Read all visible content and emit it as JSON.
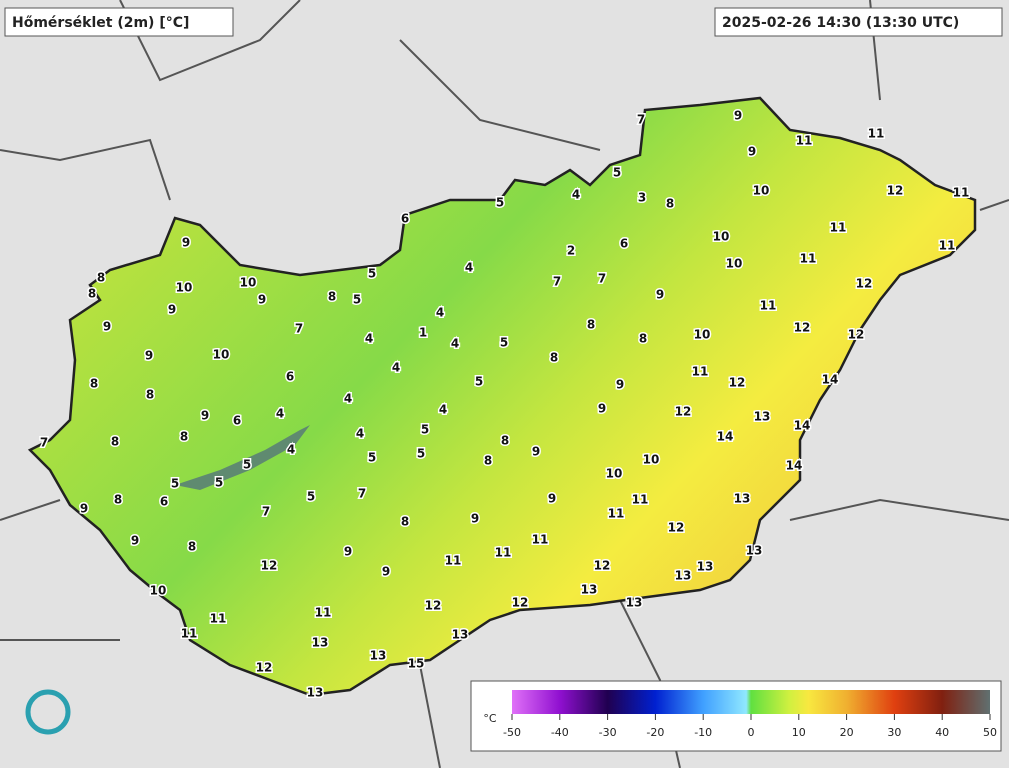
{
  "title": "Hőmérséklet (2m) [°C]",
  "timestamp": "2025-02-26 14:30 (13:30 UTC)",
  "stations": [
    7,
    9,
    11,
    11,
    9,
    5,
    10,
    12,
    11,
    4,
    3,
    8,
    5,
    6,
    11,
    10,
    6,
    2,
    11,
    9,
    10,
    11,
    4,
    7,
    7,
    5,
    8,
    10,
    10,
    8,
    12,
    9,
    8,
    5,
    9,
    9,
    11,
    4,
    9,
    7,
    8,
    12,
    1,
    10,
    8,
    12,
    4,
    4,
    5,
    10,
    9,
    8,
    4,
    6,
    11,
    12,
    14,
    8,
    8,
    5,
    9,
    4,
    4,
    9,
    6,
    9,
    12,
    13,
    4,
    14,
    7,
    8,
    8,
    4,
    5,
    14,
    8,
    4,
    5,
    5,
    5,
    9,
    8,
    10,
    14,
    10,
    5,
    5,
    7,
    11,
    13,
    6,
    8,
    5,
    9,
    9,
    7,
    11,
    8,
    9,
    12,
    9,
    11,
    8,
    11,
    9,
    13,
    11,
    12,
    9,
    12,
    13,
    13,
    13,
    10,
    12,
    12,
    13,
    11,
    11,
    11,
    13,
    13,
    13,
    15,
    12,
    13
  ],
  "colorbar": {
    "unit": "°C",
    "clim": [
      -50,
      50
    ],
    "ticks": [
      -50,
      -40,
      -30,
      -20,
      -10,
      0,
      10,
      20,
      30,
      40,
      50
    ]
  }
}
